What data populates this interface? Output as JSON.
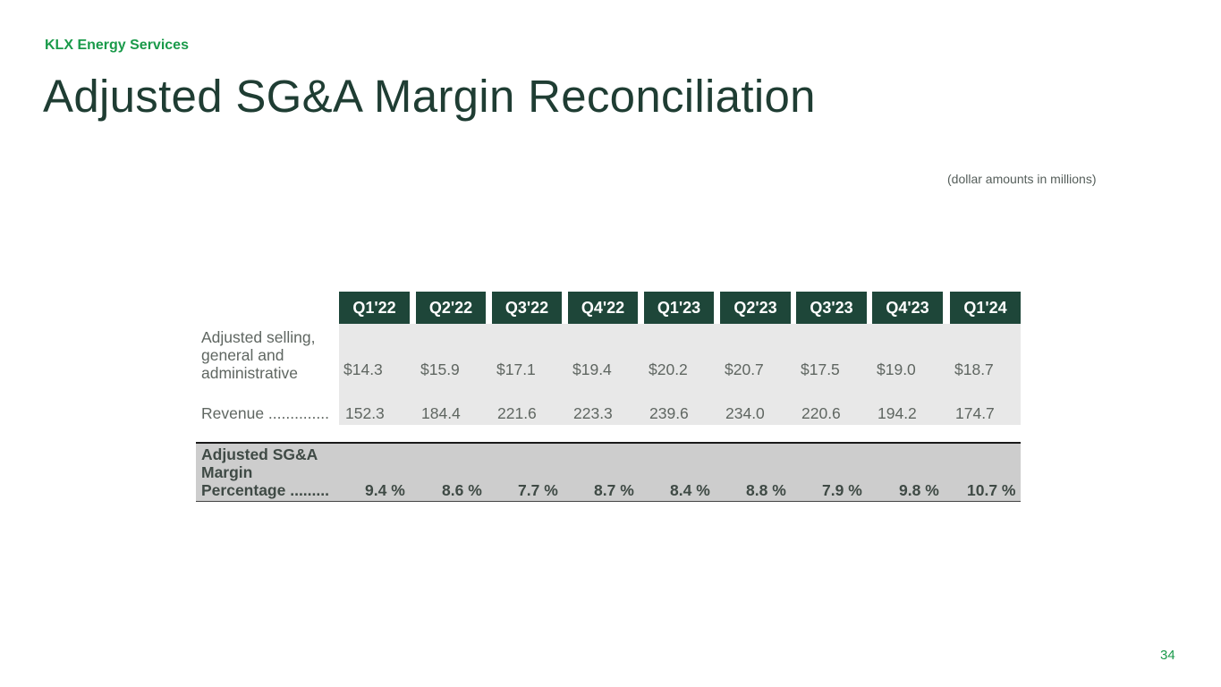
{
  "company": "KLX Energy Services",
  "title": "Adjusted SG&A Margin Reconciliation",
  "note": "(dollar amounts in millions)",
  "page_number": "34",
  "table": {
    "columns": [
      "Q1'22",
      "Q2'22",
      "Q3'22",
      "Q4'22",
      "Q1'23",
      "Q2'23",
      "Q3'23",
      "Q4'23",
      "Q1'24"
    ],
    "rows": [
      {
        "label": "Adjusted selling, general and administrative",
        "label_lines": [
          "Adjusted selling,",
          "general and",
          "administrative"
        ],
        "values": [
          "$14.3",
          "$15.9",
          "$17.1",
          "$19.4",
          "$20.2",
          "$20.7",
          "$17.5",
          "$19.0",
          "$18.7"
        ]
      },
      {
        "label": "Revenue",
        "label_dots": "Revenue ..............",
        "values": [
          "152.3",
          "184.4",
          "221.6",
          "223.3",
          "239.6",
          "234.0",
          "220.6",
          "194.2",
          "174.7"
        ]
      }
    ],
    "total_row": {
      "label_lines": [
        "Adjusted SG&A",
        "Margin",
        "Percentage ........."
      ],
      "values": [
        "9.4 %",
        "8.6 %",
        "7.7 %",
        "8.7 %",
        "8.4 %",
        "8.8 %",
        "7.9 %",
        "9.8 %",
        "10.7 %"
      ]
    }
  }
}
